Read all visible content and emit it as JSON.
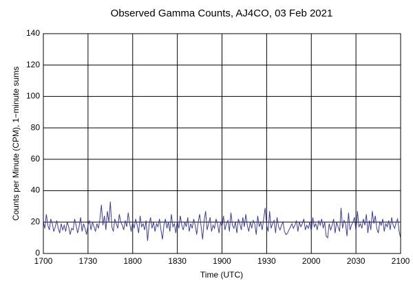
{
  "chart_data": {
    "type": "line",
    "title": "Observed Gamma Counts, AJ4CO, 03 Feb 2021",
    "xlabel": "Time (UTC)",
    "ylabel": "Counts per Minute (CPM), 1−minute sums",
    "x": [
      1020,
      1021,
      1022,
      1023,
      1024,
      1025,
      1026,
      1027,
      1028,
      1029,
      1030,
      1031,
      1032,
      1033,
      1034,
      1035,
      1036,
      1037,
      1038,
      1039,
      1040,
      1041,
      1042,
      1043,
      1044,
      1045,
      1046,
      1047,
      1048,
      1049,
      1050,
      1051,
      1052,
      1053,
      1054,
      1055,
      1056,
      1057,
      1058,
      1059,
      1060,
      1061,
      1062,
      1063,
      1064,
      1065,
      1066,
      1067,
      1068,
      1069,
      1070,
      1071,
      1072,
      1073,
      1074,
      1075,
      1076,
      1077,
      1078,
      1079,
      1080,
      1081,
      1082,
      1083,
      1084,
      1085,
      1086,
      1087,
      1088,
      1089,
      1090,
      1091,
      1092,
      1093,
      1094,
      1095,
      1096,
      1097,
      1098,
      1099,
      1100,
      1101,
      1102,
      1103,
      1104,
      1105,
      1106,
      1107,
      1108,
      1109,
      1110,
      1111,
      1112,
      1113,
      1114,
      1115,
      1116,
      1117,
      1118,
      1119,
      1120,
      1121,
      1122,
      1123,
      1124,
      1125,
      1126,
      1127,
      1128,
      1129,
      1130,
      1131,
      1132,
      1133,
      1134,
      1135,
      1136,
      1137,
      1138,
      1139,
      1140,
      1141,
      1142,
      1143,
      1144,
      1145,
      1146,
      1147,
      1148,
      1149,
      1150,
      1151,
      1152,
      1153,
      1154,
      1155,
      1156,
      1157,
      1158,
      1159,
      1160,
      1161,
      1162,
      1163,
      1164,
      1165,
      1166,
      1167,
      1168,
      1169,
      1170,
      1171,
      1172,
      1173,
      1174,
      1175,
      1176,
      1177,
      1178,
      1179,
      1180,
      1181,
      1182,
      1183,
      1184,
      1185,
      1186,
      1187,
      1188,
      1189,
      1190,
      1191,
      1192,
      1193,
      1194,
      1195,
      1196,
      1197,
      1198,
      1199,
      1200,
      1201,
      1202,
      1203,
      1204,
      1205,
      1206,
      1207,
      1208,
      1209,
      1210,
      1211,
      1212,
      1213,
      1214,
      1215,
      1216,
      1217,
      1218,
      1219,
      1220,
      1221,
      1222,
      1223,
      1224,
      1225,
      1226,
      1227,
      1228,
      1229,
      1230,
      1231,
      1232,
      1233,
      1234,
      1235,
      1236,
      1237,
      1238,
      1239,
      1240,
      1241,
      1242,
      1243,
      1244,
      1245,
      1246,
      1247,
      1248,
      1249,
      1250,
      1251,
      1252,
      1253,
      1254,
      1255,
      1256,
      1257,
      1258,
      1259,
      1260
    ],
    "series": [
      {
        "color": "#3b3b9c",
        "values": [
          20,
          16,
          25,
          18,
          15,
          22,
          19,
          14,
          17,
          21,
          16,
          13,
          19,
          15,
          18,
          14,
          20,
          17,
          12,
          16,
          15,
          22,
          18,
          13,
          17,
          23,
          14,
          19,
          16,
          12,
          18,
          21,
          15,
          20,
          17,
          14,
          19,
          16,
          22,
          31,
          18,
          24,
          15,
          27,
          20,
          33,
          17,
          14,
          22,
          19,
          16,
          25,
          20,
          18,
          15,
          21,
          17,
          26,
          19,
          14,
          20,
          16,
          22,
          18,
          13,
          24,
          17,
          19,
          15,
          21,
          8,
          18,
          23,
          16,
          20,
          14,
          19,
          17,
          22,
          15,
          9,
          18,
          22,
          16,
          20,
          14,
          25,
          17,
          19,
          13,
          21,
          16,
          24,
          18,
          15,
          20,
          17,
          23,
          14,
          19,
          16,
          22,
          18,
          12,
          20,
          25,
          17,
          9,
          21,
          27,
          15,
          19,
          23,
          14,
          18,
          16,
          22,
          19,
          13,
          20,
          17,
          24,
          15,
          19,
          21,
          14,
          26,
          18,
          16,
          20,
          13,
          22,
          19,
          15,
          23,
          17,
          25,
          18,
          14,
          20,
          16,
          21,
          19,
          12,
          24,
          17,
          20,
          15,
          22,
          29,
          18,
          14,
          27,
          16,
          19,
          21,
          13,
          23,
          17,
          15,
          18,
          20,
          14,
          12,
          13,
          15,
          17,
          19,
          16,
          18,
          21,
          14,
          20,
          17,
          19,
          22,
          15,
          18,
          16,
          20,
          14,
          23,
          17,
          19,
          15,
          21,
          18,
          22,
          16,
          20,
          11,
          10,
          19,
          15,
          18,
          22,
          13,
          20,
          17,
          14,
          29,
          16,
          21,
          19,
          11,
          26,
          15,
          18,
          20,
          23,
          14,
          27,
          17,
          19,
          16,
          22,
          18,
          25,
          13,
          21,
          15,
          27,
          19,
          24,
          16,
          13,
          20,
          18,
          22,
          14,
          19,
          17,
          21,
          15,
          23,
          18,
          16,
          20,
          22,
          14,
          10
        ]
      }
    ],
    "xlim": [
      1020,
      1260
    ],
    "xticks": [
      {
        "value": 1020,
        "label": "1700"
      },
      {
        "value": 1050,
        "label": "1730"
      },
      {
        "value": 1080,
        "label": "1800"
      },
      {
        "value": 1110,
        "label": "1830"
      },
      {
        "value": 1140,
        "label": "1900"
      },
      {
        "value": 1170,
        "label": "1930"
      },
      {
        "value": 1200,
        "label": "2000"
      },
      {
        "value": 1230,
        "label": "2030"
      },
      {
        "value": 1260,
        "label": "2100"
      }
    ],
    "ylim": [
      0,
      140
    ],
    "yticks": [
      0,
      20,
      40,
      60,
      80,
      100,
      120,
      140
    ],
    "grid": true
  }
}
